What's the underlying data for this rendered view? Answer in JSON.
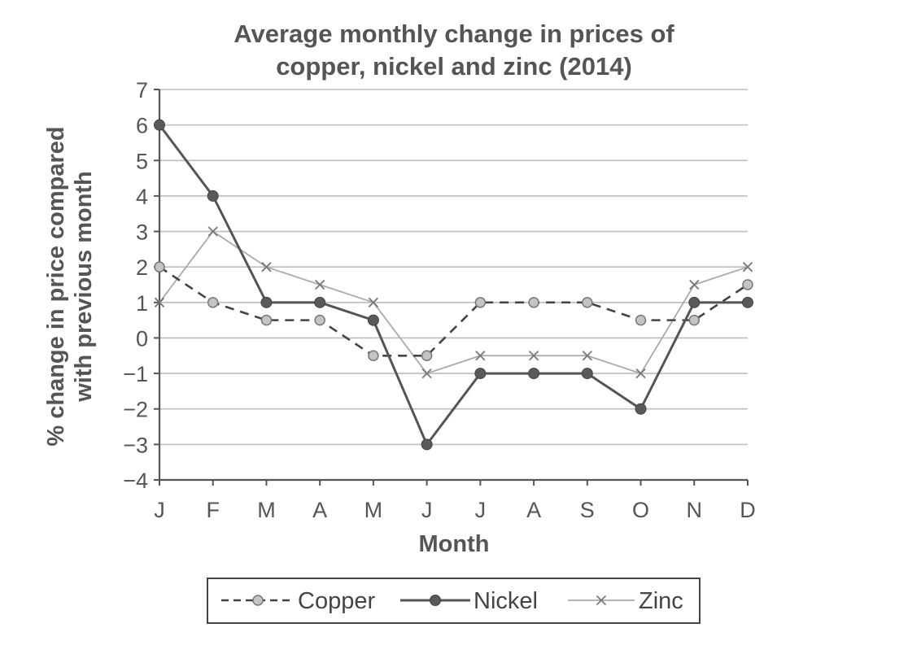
{
  "chart_data": {
    "type": "line",
    "title": [
      "Average monthly change in prices of",
      "copper, nickel and zinc (2014)"
    ],
    "xlabel": "Month",
    "ylabel": [
      "% change in price compared",
      "with previous month"
    ],
    "categories": [
      "J",
      "F",
      "M",
      "A",
      "M",
      "J",
      "J",
      "A",
      "S",
      "O",
      "N",
      "D"
    ],
    "y_ticks": [
      "7",
      "6",
      "5",
      "4",
      "3",
      "2",
      "1",
      "0",
      "−1",
      "−2",
      "−3",
      "−4"
    ],
    "ylim": [
      -4,
      7
    ],
    "grid": true,
    "legend_position": "bottom",
    "series": [
      {
        "name": "Copper",
        "style": "dashed",
        "marker": "circle-open",
        "color": "#444444",
        "values": [
          2,
          1,
          0.5,
          0.5,
          -0.5,
          -0.5,
          1,
          1,
          1,
          0.5,
          0.5,
          1.5
        ]
      },
      {
        "name": "Nickel",
        "style": "solid",
        "marker": "circle-filled",
        "color": "#555555",
        "values": [
          6,
          4,
          1,
          1,
          0.5,
          -3,
          -1,
          -1,
          -1,
          -2,
          1,
          1
        ]
      },
      {
        "name": "Zinc",
        "style": "thin",
        "marker": "cross",
        "color": "#aaaaaa",
        "values": [
          1,
          3,
          2,
          1.5,
          1,
          -1,
          -0.5,
          -0.5,
          -0.5,
          -1,
          1.5,
          2
        ]
      }
    ]
  }
}
